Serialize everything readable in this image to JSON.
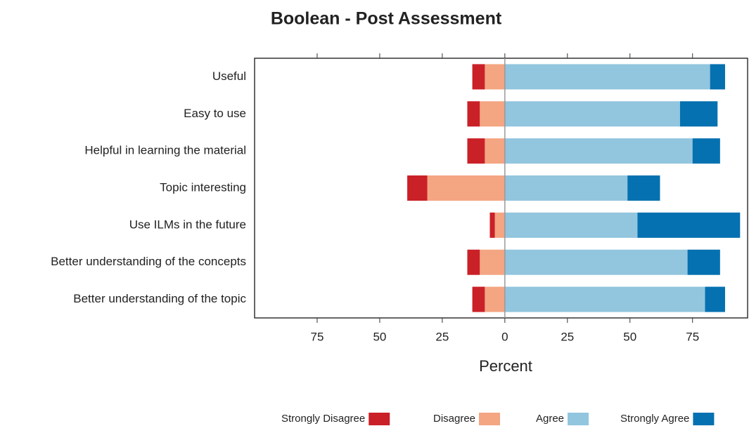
{
  "chart_data": {
    "type": "diverging_bar",
    "title": "Boolean - Post Assessment",
    "xlabel": "Percent",
    "categories": [
      "Useful",
      "Easy to use",
      "Helpful in learning the material",
      "Topic interesting",
      "Use ILMs in the future",
      "Better understanding of the concepts",
      "Better understanding of the topic"
    ],
    "series": [
      {
        "name": "Strongly Disagree",
        "color": "#ca2027",
        "side": "left",
        "values": [
          -5,
          -5,
          -7,
          -8,
          -2,
          -5,
          -5
        ]
      },
      {
        "name": "Disagree",
        "color": "#f4a582",
        "side": "left",
        "values": [
          -8,
          -10,
          -8,
          -31,
          -4,
          -10,
          -8
        ]
      },
      {
        "name": "Agree",
        "color": "#92c5de",
        "side": "right",
        "values": [
          82,
          70,
          75,
          49,
          53,
          73,
          80
        ]
      },
      {
        "name": "Strongly Agree",
        "color": "#0571b0",
        "side": "right",
        "values": [
          6,
          15,
          11,
          13,
          41,
          13,
          8
        ]
      }
    ],
    "xlim": [
      -100,
      97
    ],
    "xticks": [
      {
        "value": -75,
        "label": "75"
      },
      {
        "value": -50,
        "label": "50"
      },
      {
        "value": -25,
        "label": "25"
      },
      0,
      25,
      50,
      75
    ]
  }
}
